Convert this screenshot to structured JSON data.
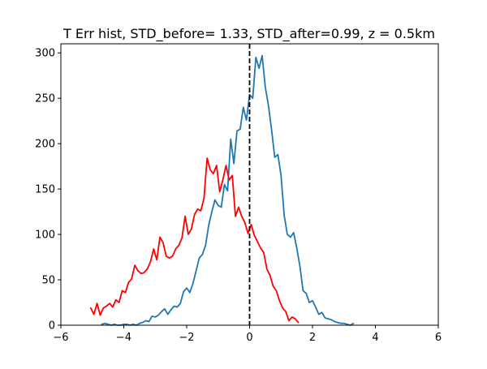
{
  "chart_data": {
    "type": "line",
    "title": "T Err hist, STD_before= 1.33, STD_after=0.99, z = 0.5km",
    "xlabel": "",
    "ylabel": "",
    "xlim": [
      -6,
      6
    ],
    "ylim": [
      0,
      310
    ],
    "xticks": [
      -6,
      -4,
      -2,
      0,
      2,
      4,
      6
    ],
    "xtick_labels": [
      "−6",
      "−4",
      "−2",
      "0",
      "2",
      "4",
      "6"
    ],
    "yticks": [
      0,
      50,
      100,
      150,
      200,
      250,
      300
    ],
    "ytick_labels": [
      "0",
      "50",
      "100",
      "150",
      "200",
      "250",
      "300"
    ],
    "grid": false,
    "legend": "none",
    "vline": {
      "x": 0,
      "style": "dashed",
      "color": "#000000"
    },
    "series": [
      {
        "color": "#1f77b4",
        "x": [
          -4.7,
          -4.6,
          -4.5,
          -4.4,
          -4.3,
          -4.2,
          -4.1,
          -4.0,
          -3.9,
          -3.8,
          -3.7,
          -3.6,
          -3.5,
          -3.4,
          -3.3,
          -3.2,
          -3.1,
          -3.0,
          -2.9,
          -2.8,
          -2.7,
          -2.6,
          -2.5,
          -2.4,
          -2.3,
          -2.2,
          -2.1,
          -2.0,
          -1.9,
          -1.8,
          -1.7,
          -1.6,
          -1.5,
          -1.4,
          -1.3,
          -1.2,
          -1.1,
          -1.0,
          -0.9,
          -0.8,
          -0.7,
          -0.6,
          -0.5,
          -0.4,
          -0.3,
          -0.2,
          -0.1,
          0.0,
          0.1,
          0.2,
          0.3,
          0.4,
          0.5,
          0.6,
          0.7,
          0.8,
          0.9,
          1.0,
          1.1,
          1.2,
          1.3,
          1.4,
          1.5,
          1.6,
          1.7,
          1.8,
          1.9,
          2.0,
          2.1,
          2.2,
          2.3,
          2.4,
          2.5,
          2.6,
          2.7,
          2.8,
          2.9,
          3.0,
          3.1,
          3.2,
          3.3
        ],
        "y": [
          1,
          2,
          1,
          0,
          1,
          0,
          0,
          1,
          1,
          0,
          1,
          0,
          2,
          3,
          5,
          4,
          10,
          9,
          11,
          15,
          18,
          12,
          17,
          21,
          20,
          24,
          37,
          41,
          36,
          46,
          60,
          74,
          78,
          88,
          110,
          125,
          138,
          132,
          130,
          155,
          148,
          205,
          178,
          214,
          216,
          240,
          226,
          254,
          250,
          295,
          283,
          297,
          262,
          242,
          215,
          185,
          188,
          165,
          121,
          100,
          97,
          102,
          85,
          65,
          38,
          35,
          25,
          27,
          20,
          12,
          14,
          8,
          7,
          6,
          4,
          3,
          2,
          2,
          1,
          0,
          2
        ]
      },
      {
        "color": "#ff0000",
        "x": [
          -5.05,
          -4.95,
          -4.85,
          -4.75,
          -4.65,
          -4.55,
          -4.45,
          -4.35,
          -4.25,
          -4.15,
          -4.05,
          -3.95,
          -3.85,
          -3.75,
          -3.65,
          -3.55,
          -3.45,
          -3.35,
          -3.25,
          -3.15,
          -3.05,
          -2.95,
          -2.85,
          -2.75,
          -2.65,
          -2.55,
          -2.45,
          -2.35,
          -2.25,
          -2.15,
          -2.05,
          -1.95,
          -1.85,
          -1.75,
          -1.65,
          -1.55,
          -1.45,
          -1.35,
          -1.25,
          -1.15,
          -1.05,
          -0.95,
          -0.85,
          -0.75,
          -0.65,
          -0.55,
          -0.45,
          -0.35,
          -0.25,
          -0.15,
          -0.05,
          0.05,
          0.15,
          0.25,
          0.35,
          0.45,
          0.55,
          0.65,
          0.75,
          0.85,
          0.95,
          1.05,
          1.15,
          1.25,
          1.35,
          1.45,
          1.55
        ],
        "y": [
          19,
          12,
          24,
          11,
          19,
          21,
          24,
          20,
          28,
          25,
          38,
          36,
          47,
          51,
          66,
          60,
          57,
          58,
          62,
          70,
          84,
          72,
          97,
          91,
          76,
          74,
          76,
          84,
          88,
          96,
          120,
          100,
          106,
          122,
          128,
          126,
          140,
          184,
          171,
          167,
          176,
          147,
          160,
          176,
          160,
          165,
          120,
          130,
          120,
          113,
          101,
          111,
          99,
          92,
          85,
          80,
          62,
          55,
          43,
          38,
          27,
          19,
          15,
          5,
          9,
          7,
          3
        ]
      }
    ]
  }
}
